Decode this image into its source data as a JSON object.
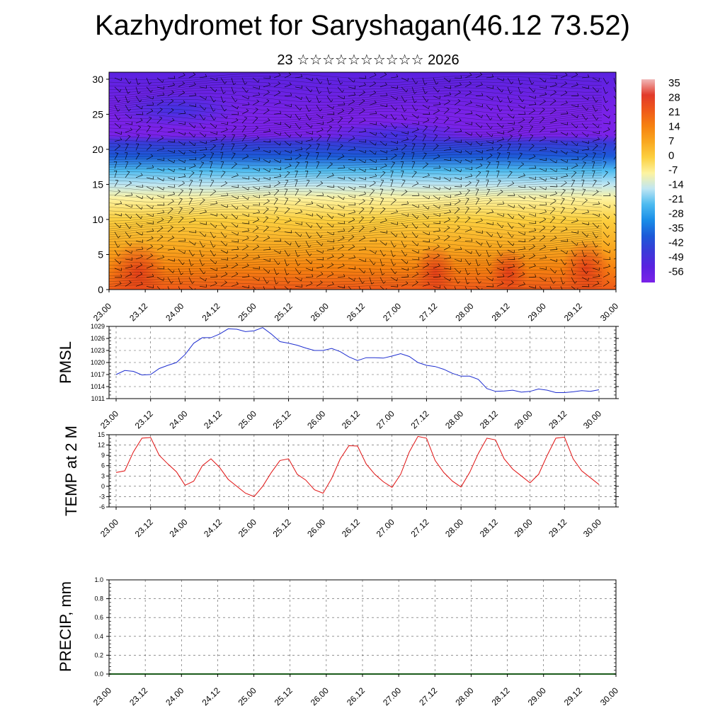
{
  "title": "Kazhydromet for Saryshagan(46.12 73.52)",
  "subtitle": "23 ☆☆☆☆☆☆☆☆☆☆ 2026",
  "colors": {
    "pmsl_line": "#1f2fd0",
    "temp_line": "#e01010",
    "precip_line": "#1a5a1a",
    "grid": "#555555",
    "axis": "#000000"
  },
  "chart_data": [
    {
      "id": "cross-section",
      "type": "heatmap",
      "title": "",
      "ylabel": "",
      "ylim": [
        0,
        31
      ],
      "yticks": [
        0,
        5,
        10,
        15,
        20,
        25,
        30
      ],
      "x_ticks": [
        "23.00",
        "23.12",
        "24.00",
        "24.12",
        "25.00",
        "25.12",
        "26.00",
        "26.12",
        "27.00",
        "27.12",
        "28.00",
        "28.12",
        "29.00",
        "29.12",
        "30.00"
      ],
      "color_scale": {
        "labels": [
          "35",
          "28",
          "21",
          "14",
          "7",
          "0",
          "-7",
          "-14",
          "-21",
          "-28",
          "-35",
          "-42",
          "-49",
          "-56"
        ],
        "colors": [
          "#f1b8b8",
          "#e23a2a",
          "#ef5a1a",
          "#f68210",
          "#f9a820",
          "#fcd040",
          "#fdf3a0",
          "#bfe6f3",
          "#4dbbf0",
          "#1a8ee8",
          "#1c5ad8",
          "#3a3ad8",
          "#5a22e0",
          "#7a22e8"
        ]
      },
      "temperature_profile": {
        "heights_km": [
          0,
          3,
          6,
          10,
          13,
          15,
          17,
          19,
          21,
          22,
          25,
          31
        ],
        "values_c": [
          21,
          14,
          7,
          0,
          -6,
          -12,
          -22,
          -33,
          -45,
          -55,
          -60,
          -52
        ]
      }
    },
    {
      "id": "pmsl",
      "type": "line",
      "ylabel": "PMSL",
      "ylim": [
        1011,
        1029
      ],
      "yticks": [
        1011,
        1014,
        1017,
        1020,
        1023,
        1026,
        1029
      ],
      "x_ticks": [
        "23.00",
        "23.12",
        "24.00",
        "24.12",
        "25.00",
        "25.12",
        "26.00",
        "26.12",
        "27.00",
        "27.12",
        "28.00",
        "28.12",
        "29.00",
        "29.12",
        "30.00"
      ],
      "x_hours": [
        0,
        3,
        6,
        9,
        12,
        15,
        18,
        21,
        24,
        27,
        30,
        33,
        36,
        39,
        42,
        45,
        48,
        51,
        54,
        57,
        60,
        63,
        66,
        69,
        72,
        75,
        78,
        81,
        84,
        87,
        90,
        93,
        96,
        99,
        102,
        105,
        108,
        111,
        114,
        117,
        120,
        123,
        126,
        129,
        132,
        135,
        138,
        141,
        144,
        147,
        150,
        153,
        156,
        159,
        162,
        165,
        168
      ],
      "values": [
        1017,
        1018,
        1017.8,
        1016.9,
        1017,
        1018.5,
        1019.3,
        1020,
        1022,
        1024.8,
        1026.2,
        1026.2,
        1027.1,
        1028.4,
        1028.3,
        1027.7,
        1027.9,
        1028.7,
        1027.1,
        1025.2,
        1024.8,
        1024.3,
        1023.6,
        1023,
        1023,
        1023.5,
        1022.7,
        1021.4,
        1020.5,
        1021.2,
        1021.2,
        1021.1,
        1021.6,
        1022.2,
        1021.5,
        1020,
        1019.3,
        1019,
        1018.3,
        1017.3,
        1016.6,
        1016.6,
        1015.8,
        1013.5,
        1012.8,
        1012.9,
        1013.1,
        1012.6,
        1012.8,
        1013.4,
        1013.1,
        1012.5,
        1012.5,
        1012.7,
        1013,
        1012.8,
        1013.2
      ]
    },
    {
      "id": "temp",
      "type": "line",
      "ylabel": "TEMP at 2 M",
      "ylim": [
        -6,
        15
      ],
      "yticks": [
        -6,
        -3,
        0,
        3,
        6,
        9,
        12,
        15
      ],
      "x_ticks": [
        "23.00",
        "23.12",
        "24.00",
        "24.12",
        "25.00",
        "25.12",
        "26.00",
        "26.12",
        "27.00",
        "27.12",
        "28.00",
        "28.12",
        "29.00",
        "29.12",
        "30.00"
      ],
      "x_hours": [
        0,
        3,
        6,
        9,
        12,
        15,
        18,
        21,
        24,
        27,
        30,
        33,
        36,
        39,
        42,
        45,
        48,
        51,
        54,
        57,
        60,
        63,
        66,
        69,
        72,
        75,
        78,
        81,
        84,
        87,
        90,
        93,
        96,
        99,
        102,
        105,
        108,
        111,
        114,
        117,
        120,
        123,
        126,
        129,
        132,
        135,
        138,
        141,
        144,
        147,
        150,
        153,
        156,
        159,
        162,
        165,
        168
      ],
      "values": [
        4,
        4.5,
        10,
        14,
        14.2,
        9,
        6.5,
        4.2,
        0.3,
        1.5,
        6,
        8,
        5.5,
        2,
        0,
        -2,
        -3,
        0,
        4,
        7.5,
        8,
        3.5,
        1.8,
        -1,
        -2,
        2.3,
        8,
        11.8,
        11.7,
        6.5,
        3.5,
        1.3,
        -0.3,
        3.5,
        10,
        14.5,
        14,
        7.5,
        4,
        1.5,
        -0.2,
        4,
        9.5,
        14,
        13.5,
        8,
        5,
        3,
        1,
        3.5,
        9,
        14,
        14.3,
        8,
        4.5,
        2.5,
        0.5
      ]
    },
    {
      "id": "precip",
      "type": "line",
      "ylabel": "PRECIP, mm",
      "ylim": [
        0,
        1
      ],
      "yticks": [
        "0.0",
        "0.2",
        "0.4",
        "0.6",
        "0.8",
        "1.0"
      ],
      "x_ticks": [
        "23.00",
        "23.12",
        "24.00",
        "24.12",
        "25.00",
        "25.12",
        "26.00",
        "26.12",
        "27.00",
        "27.12",
        "28.00",
        "28.12",
        "29.00",
        "29.12",
        "30.00"
      ],
      "values": [
        0,
        0,
        0,
        0,
        0,
        0,
        0,
        0,
        0,
        0,
        0,
        0,
        0,
        0,
        0
      ]
    }
  ]
}
